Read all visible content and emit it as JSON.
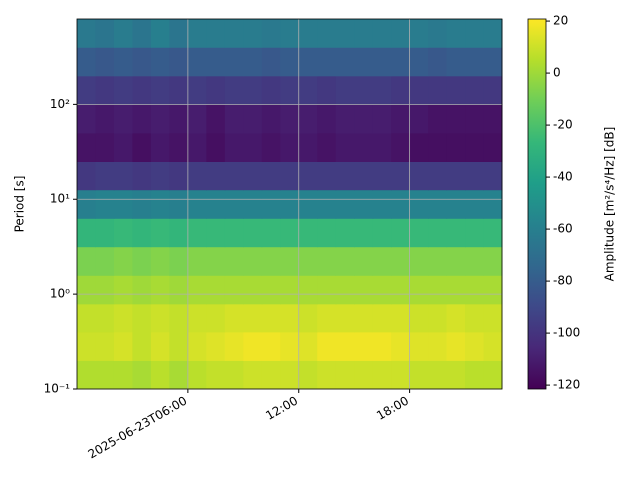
{
  "chart_data": {
    "type": "heatmap",
    "ylabel": "Period [s]",
    "xbins": [
      0,
      1,
      2,
      3,
      4,
      5,
      6,
      7,
      8,
      9,
      10,
      11,
      12,
      13,
      14,
      15,
      16,
      17,
      18,
      19,
      20,
      21,
      22,
      23
    ],
    "ybins": [
      0.1,
      0.2,
      0.4,
      0.79,
      1.58,
      3.16,
      6.3,
      12.6,
      25,
      50,
      100,
      200,
      400,
      794
    ],
    "values": [
      [
        4,
        4,
        4,
        2,
        6,
        2,
        6,
        8,
        8,
        10,
        10,
        10,
        8,
        10,
        10,
        10,
        10,
        10,
        8,
        8,
        8,
        6,
        6
      ],
      [
        10,
        10,
        12,
        8,
        12,
        8,
        12,
        14,
        16,
        18,
        18,
        16,
        14,
        18,
        18,
        18,
        18,
        16,
        14,
        14,
        16,
        14,
        12
      ],
      [
        8,
        8,
        10,
        8,
        10,
        8,
        10,
        10,
        12,
        12,
        12,
        12,
        10,
        12,
        12,
        12,
        12,
        12,
        10,
        10,
        12,
        10,
        10
      ],
      [
        0,
        0,
        2,
        0,
        2,
        0,
        2,
        2,
        2,
        2,
        2,
        2,
        2,
        2,
        2,
        2,
        2,
        2,
        2,
        2,
        2,
        2,
        2
      ],
      [
        -8,
        -8,
        -6,
        -8,
        -6,
        -8,
        -6,
        -6,
        -6,
        -6,
        -6,
        -6,
        -6,
        -6,
        -6,
        -6,
        -6,
        -6,
        -6,
        -6,
        -6,
        -6,
        -6
      ],
      [
        -28,
        -28,
        -26,
        -28,
        -26,
        -28,
        -26,
        -26,
        -26,
        -26,
        -26,
        -26,
        -26,
        -26,
        -26,
        -26,
        -26,
        -26,
        -26,
        -26,
        -26,
        -26,
        -26
      ],
      [
        -60,
        -58,
        -58,
        -60,
        -58,
        -60,
        -58,
        -58,
        -58,
        -58,
        -58,
        -58,
        -58,
        -58,
        -58,
        -58,
        -58,
        -58,
        -58,
        -58,
        -58,
        -58,
        -58
      ],
      [
        -98,
        -96,
        -96,
        -98,
        -96,
        -98,
        -96,
        -96,
        -96,
        -96,
        -96,
        -96,
        -96,
        -96,
        -96,
        -96,
        -96,
        -96,
        -96,
        -96,
        -96,
        -96,
        -96
      ],
      [
        -114,
        -114,
        -112,
        -116,
        -112,
        -114,
        -112,
        -116,
        -112,
        -112,
        -114,
        -112,
        -112,
        -114,
        -112,
        -112,
        -112,
        -114,
        -116,
        -116,
        -116,
        -116,
        -116
      ],
      [
        -110,
        -112,
        -110,
        -112,
        -110,
        -112,
        -110,
        -114,
        -110,
        -110,
        -112,
        -110,
        -110,
        -112,
        -110,
        -110,
        -110,
        -112,
        -112,
        -114,
        -114,
        -114,
        -114
      ],
      [
        -96,
        -98,
        -96,
        -98,
        -96,
        -98,
        -96,
        -98,
        -96,
        -96,
        -98,
        -96,
        -96,
        -98,
        -96,
        -96,
        -96,
        -98,
        -98,
        -98,
        -98,
        -98,
        -98
      ],
      [
        -80,
        -82,
        -80,
        -82,
        -80,
        -82,
        -80,
        -80,
        -80,
        -80,
        -82,
        -80,
        -80,
        -80,
        -80,
        -80,
        -80,
        -80,
        -80,
        -82,
        -80,
        -80,
        -80
      ],
      [
        -64,
        -66,
        -62,
        -66,
        -60,
        -66,
        -62,
        -62,
        -62,
        -62,
        -64,
        -62,
        -62,
        -62,
        -62,
        -62,
        -62,
        -62,
        -62,
        -64,
        -62,
        -62,
        -62
      ]
    ],
    "xlim": [
      0,
      23
    ],
    "xticks": [
      {
        "value": 6,
        "label": "2025-06-23T06:00"
      },
      {
        "value": 12,
        "label": "12:00"
      },
      {
        "value": 18,
        "label": "18:00"
      }
    ],
    "ylim": [
      0.1,
      794
    ],
    "yscale": "log",
    "yticks": [
      {
        "value": 0.1,
        "label": "10⁻¹"
      },
      {
        "value": 1,
        "label": "10⁰"
      },
      {
        "value": 10,
        "label": "10¹"
      },
      {
        "value": 100,
        "label": "10²"
      }
    ],
    "grid": true,
    "colormap": "viridis",
    "colorbar": {
      "label": "Amplitude [m²/s⁴/Hz] [dB]",
      "clim": [
        -121.5,
        20.8
      ],
      "ticks": [
        -120,
        -100,
        -80,
        -60,
        -40,
        -20,
        0,
        20
      ]
    }
  }
}
